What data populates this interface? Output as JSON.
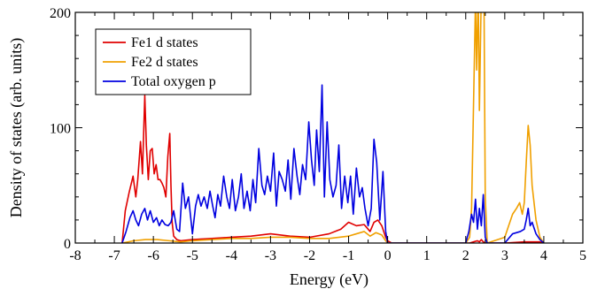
{
  "chart_data": {
    "type": "line",
    "xlabel": "Energy (eV)",
    "ylabel": "Density of states (arb. units)",
    "xlim": [
      -8,
      5
    ],
    "ylim": [
      0,
      200
    ],
    "xticks": [
      -8,
      -7,
      -6,
      -5,
      -4,
      -3,
      -2,
      -1,
      0,
      1,
      2,
      3,
      4,
      5
    ],
    "yticks": [
      0,
      100,
      200
    ],
    "grid": false,
    "legend_position": "top-left",
    "series": [
      {
        "name": "Fe1 d states",
        "color": "#e00000",
        "x": [
          -6.8,
          -6.72,
          -6.62,
          -6.52,
          -6.45,
          -6.4,
          -6.33,
          -6.28,
          -6.22,
          -6.18,
          -6.13,
          -6.08,
          -6.03,
          -5.98,
          -5.93,
          -5.88,
          -5.83,
          -5.78,
          -5.73,
          -5.68,
          -5.63,
          -5.58,
          -5.55,
          -5.52,
          -5.48,
          -5.4,
          -5.3,
          -5.0,
          -4.5,
          -4.0,
          -3.5,
          -3.0,
          -2.5,
          -2.0,
          -1.5,
          -1.2,
          -1.0,
          -0.8,
          -0.6,
          -0.45,
          -0.35,
          -0.25,
          -0.15,
          -0.05,
          0.0,
          0.1,
          2.0,
          2.1,
          2.2,
          2.3,
          2.35,
          2.4,
          2.45,
          2.5,
          2.6,
          3.0,
          3.5,
          3.9,
          4.0
        ],
        "y": [
          0,
          28,
          44,
          58,
          40,
          55,
          88,
          60,
          128,
          85,
          55,
          80,
          82,
          60,
          68,
          55,
          55,
          52,
          48,
          40,
          75,
          95,
          50,
          18,
          6,
          3,
          2,
          3,
          4,
          5,
          6,
          8,
          6,
          5,
          8,
          12,
          18,
          15,
          16,
          10,
          18,
          20,
          15,
          5,
          2,
          0,
          0,
          0,
          1,
          2,
          1,
          3,
          1,
          0,
          0,
          0,
          1,
          1,
          0
        ]
      },
      {
        "name": "Fe2 d states",
        "color": "#f0a000",
        "x": [
          -6.8,
          -6.5,
          -6.2,
          -5.9,
          -5.6,
          -5.3,
          -5.0,
          -4.5,
          -4.0,
          -3.5,
          -3.0,
          -2.5,
          -2.0,
          -1.5,
          -1.0,
          -0.8,
          -0.6,
          -0.45,
          -0.3,
          -0.15,
          -0.05,
          0.0,
          2.0,
          2.1,
          2.15,
          2.2,
          2.25,
          2.28,
          2.32,
          2.35,
          2.4,
          2.43,
          2.47,
          2.5,
          2.55,
          3.0,
          3.1,
          3.2,
          3.3,
          3.38,
          3.45,
          3.5,
          3.55,
          3.6,
          3.65,
          3.7,
          3.8,
          3.9,
          4.0
        ],
        "y": [
          0,
          2,
          3,
          3,
          2,
          1,
          2,
          3,
          4,
          4,
          5,
          5,
          4,
          4,
          6,
          8,
          10,
          6,
          9,
          7,
          2,
          0,
          0,
          5,
          30,
          120,
          210,
          150,
          220,
          115,
          220,
          210,
          200,
          40,
          0,
          5,
          15,
          25,
          30,
          35,
          25,
          35,
          70,
          102,
          85,
          50,
          20,
          5,
          0
        ]
      },
      {
        "name": "Total oxygen p",
        "color": "#0000e0",
        "x": [
          -6.8,
          -6.7,
          -6.6,
          -6.52,
          -6.45,
          -6.38,
          -6.3,
          -6.22,
          -6.15,
          -6.08,
          -6.0,
          -5.92,
          -5.85,
          -5.78,
          -5.7,
          -5.62,
          -5.55,
          -5.48,
          -5.4,
          -5.33,
          -5.25,
          -5.18,
          -5.1,
          -5.0,
          -4.92,
          -4.85,
          -4.78,
          -4.7,
          -4.62,
          -4.55,
          -4.48,
          -4.42,
          -4.35,
          -4.28,
          -4.2,
          -4.12,
          -4.05,
          -3.98,
          -3.9,
          -3.82,
          -3.75,
          -3.68,
          -3.6,
          -3.52,
          -3.45,
          -3.38,
          -3.3,
          -3.22,
          -3.15,
          -3.08,
          -3.0,
          -2.92,
          -2.85,
          -2.78,
          -2.7,
          -2.62,
          -2.55,
          -2.48,
          -2.4,
          -2.32,
          -2.25,
          -2.18,
          -2.1,
          -2.02,
          -1.95,
          -1.88,
          -1.82,
          -1.75,
          -1.68,
          -1.62,
          -1.55,
          -1.48,
          -1.4,
          -1.32,
          -1.25,
          -1.18,
          -1.1,
          -1.02,
          -0.95,
          -0.88,
          -0.8,
          -0.72,
          -0.65,
          -0.58,
          -0.5,
          -0.42,
          -0.35,
          -0.28,
          -0.2,
          -0.12,
          -0.05,
          0.0,
          0.1,
          2.0,
          2.08,
          2.15,
          2.2,
          2.25,
          2.3,
          2.35,
          2.4,
          2.45,
          2.5,
          2.55,
          3.0,
          3.2,
          3.4,
          3.5,
          3.55,
          3.6,
          3.65,
          3.7,
          3.8,
          3.9,
          4.0
        ],
        "y": [
          0,
          10,
          22,
          28,
          20,
          15,
          25,
          30,
          20,
          28,
          18,
          22,
          15,
          20,
          16,
          15,
          18,
          28,
          12,
          10,
          52,
          30,
          40,
          8,
          32,
          42,
          32,
          40,
          30,
          45,
          32,
          22,
          42,
          32,
          58,
          40,
          30,
          55,
          28,
          40,
          60,
          30,
          45,
          28,
          55,
          35,
          82,
          50,
          42,
          58,
          45,
          78,
          32,
          62,
          55,
          45,
          72,
          38,
          82,
          58,
          42,
          68,
          55,
          105,
          72,
          50,
          98,
          62,
          137,
          40,
          105,
          55,
          40,
          50,
          85,
          30,
          58,
          35,
          58,
          25,
          65,
          40,
          48,
          30,
          15,
          30,
          90,
          70,
          20,
          62,
          10,
          0,
          0,
          0,
          10,
          25,
          18,
          38,
          12,
          30,
          15,
          42,
          5,
          0,
          0,
          8,
          10,
          12,
          20,
          30,
          15,
          18,
          8,
          3,
          0
        ]
      }
    ]
  }
}
